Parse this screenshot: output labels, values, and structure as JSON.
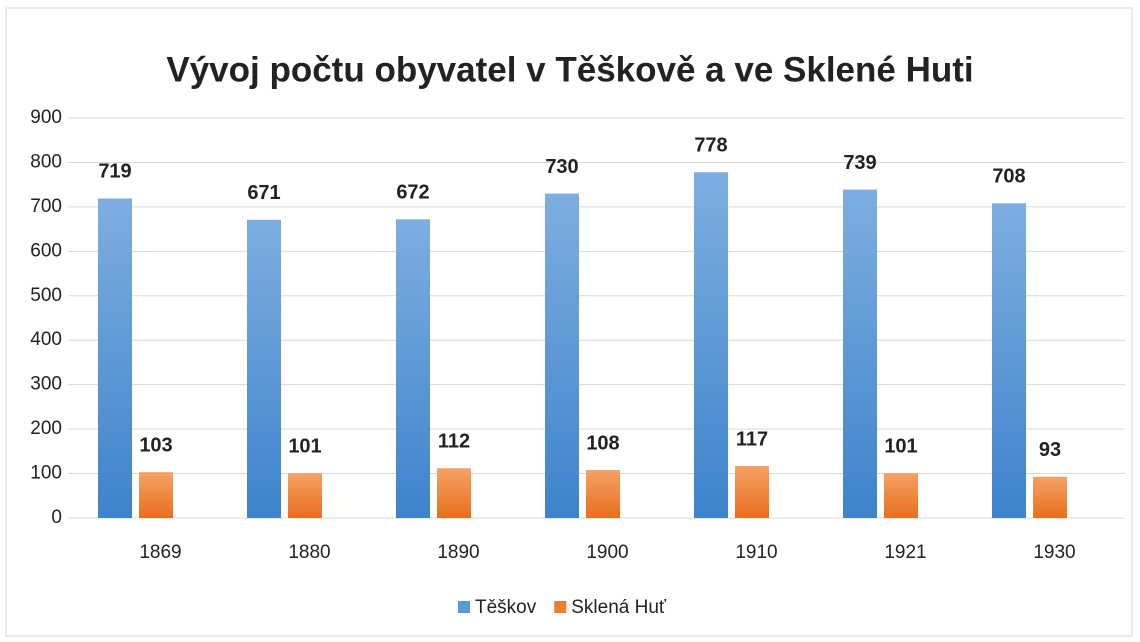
{
  "chart_data": {
    "type": "bar",
    "title": "Vývoj počtu obyvatel v Těškově a ve Sklené Huti",
    "categories": [
      "1869",
      "1880",
      "1890",
      "1900",
      "1910",
      "1921",
      "1930"
    ],
    "series": [
      {
        "name": "Těškov",
        "color": "#5b9bd5",
        "values": [
          719,
          671,
          672,
          730,
          778,
          739,
          708
        ]
      },
      {
        "name": "Sklená Huť",
        "color": "#ed7d31",
        "values": [
          103,
          101,
          112,
          108,
          117,
          101,
          93
        ]
      }
    ],
    "ylim": [
      0,
      900
    ],
    "yticks": [
      0,
      100,
      200,
      300,
      400,
      500,
      600,
      700,
      800,
      900
    ],
    "grid": true,
    "legend": "bottom"
  }
}
